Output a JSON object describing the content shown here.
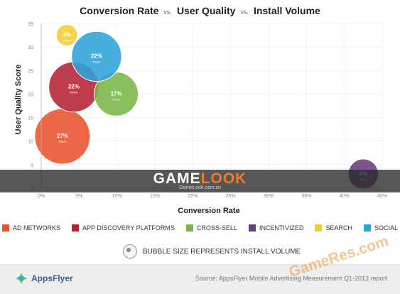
{
  "title": {
    "part1": "Conversion Rate",
    "vs1": "vs.",
    "part2": "User Quality",
    "vs2": "vs.",
    "part3": "Install Volume"
  },
  "legend_items": [
    {
      "label": "AD NETWORKS",
      "color": "#e8522e"
    },
    {
      "label": "APP DISCOVERY PLATFORMS",
      "color": "#b52234"
    },
    {
      "label": "CROSS-SELL",
      "color": "#7ab648"
    },
    {
      "label": "INCENTIVIZED",
      "color": "#6b3d7e"
    },
    {
      "label": "SEARCH",
      "color": "#f2cd35"
    },
    {
      "label": "SOCIAL",
      "color": "#2ea3d8"
    }
  ],
  "size_note": "BUBBLE SIZE REPRESENTS INSTALL VOLUME",
  "footer": {
    "logo_text": "AppsFlyer",
    "source": "Source: AppsFlyer Mobile Advertising Measurement Q1-2013 report"
  },
  "banner": {
    "text_a": "GAME",
    "text_b": "LOOK",
    "sub": "GameLook.com.cn"
  },
  "watermark": "GameRes.com",
  "chart_data": {
    "type": "scatter",
    "title": "Conversion Rate vs. User Quality vs. Install Volume",
    "xlabel": "Conversion Rate",
    "ylabel": "User Quality Score",
    "xlim": [
      0,
      45
    ],
    "ylim": [
      0,
      35
    ],
    "x_ticks": [
      0,
      5,
      10,
      15,
      20,
      25,
      30,
      35,
      40,
      45
    ],
    "x_tick_labels": [
      "0%",
      "5%",
      "10%",
      "15%",
      "20%",
      "25%",
      "30%",
      "35%",
      "40%",
      "45%"
    ],
    "y_ticks": [
      0,
      5,
      10,
      15,
      20,
      25,
      30,
      35
    ],
    "y_tick_labels": [
      "0",
      "5",
      "10",
      "15",
      "20",
      "25",
      "30",
      "35"
    ],
    "size_label": "share",
    "series": [
      {
        "name": "AD NETWORKS",
        "x": 2.8,
        "y": 11,
        "share": 27,
        "label": "27%",
        "color": "#e8522e"
      },
      {
        "name": "APP DISCOVERY PLATFORMS",
        "x": 4.3,
        "y": 21.5,
        "share": 22,
        "label": "22%",
        "color": "#b52234"
      },
      {
        "name": "CROSS-SELL",
        "x": 9.9,
        "y": 20,
        "share": 17,
        "label": "17%",
        "color": "#7ab648"
      },
      {
        "name": "INCENTIVIZED",
        "x": 42.5,
        "y": 3,
        "share": 8,
        "label": "8%",
        "color": "#6b3d7e"
      },
      {
        "name": "SEARCH",
        "x": 3.4,
        "y": 32.5,
        "share": 4,
        "label": "4%",
        "color": "#f2cd35"
      },
      {
        "name": "SOCIAL",
        "x": 7.3,
        "y": 28,
        "share": 22,
        "label": "22%",
        "color": "#2ea3d8"
      }
    ]
  }
}
